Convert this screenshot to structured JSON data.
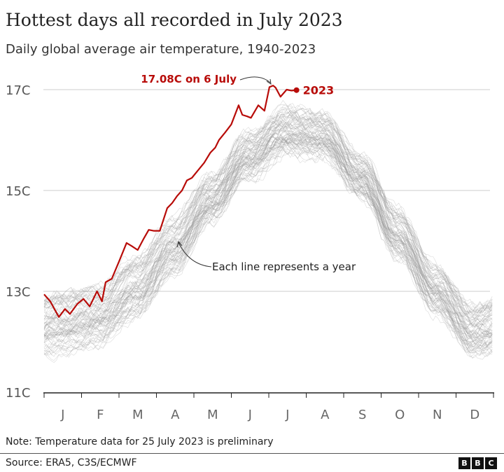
{
  "header": {
    "title": "Hottest days all recorded in July 2023",
    "subtitle": "Daily global average air temperature, 1940-2023"
  },
  "footer": {
    "note": "Note: Temperature data for 25 July 2023 is preliminary",
    "source": "Source: ERA5, C3S/ECMWF",
    "logo": "BBC"
  },
  "chart_data": {
    "type": "line",
    "title": "Hottest days all recorded in July 2023",
    "ylim": [
      11,
      17
    ],
    "y_ticks": [
      {
        "value": 11,
        "label": "11C"
      },
      {
        "value": 13,
        "label": "13C"
      },
      {
        "value": 15,
        "label": "15C"
      },
      {
        "value": 17,
        "label": "17C"
      }
    ],
    "x_ticks": [
      "J",
      "F",
      "M",
      "A",
      "M",
      "J",
      "J",
      "A",
      "S",
      "O",
      "N",
      "D"
    ],
    "grid": true,
    "colors": {
      "highlight": "#b80c09",
      "other_years": "#999999",
      "grid": "#dddddd"
    },
    "highlight_series": {
      "name": "2023",
      "points": [
        [
          1,
          12.94
        ],
        [
          6,
          12.8
        ],
        [
          13,
          12.49
        ],
        [
          18,
          12.65
        ],
        [
          22,
          12.55
        ],
        [
          28,
          12.75
        ],
        [
          33,
          12.85
        ],
        [
          38,
          12.7
        ],
        [
          44,
          13.0
        ],
        [
          48,
          12.8
        ],
        [
          51,
          13.18
        ],
        [
          56,
          13.25
        ],
        [
          62,
          13.6
        ],
        [
          68,
          13.96
        ],
        [
          72,
          13.9
        ],
        [
          77,
          13.82
        ],
        [
          82,
          14.05
        ],
        [
          86,
          14.22
        ],
        [
          90,
          14.2
        ],
        [
          95,
          14.2
        ],
        [
          101,
          14.65
        ],
        [
          105,
          14.75
        ],
        [
          109,
          14.89
        ],
        [
          113,
          15.0
        ],
        [
          117,
          15.2
        ],
        [
          121,
          15.25
        ],
        [
          126,
          15.4
        ],
        [
          131,
          15.55
        ],
        [
          136,
          15.75
        ],
        [
          140,
          15.85
        ],
        [
          143,
          16.0
        ],
        [
          148,
          16.15
        ],
        [
          153,
          16.31
        ],
        [
          159,
          16.69
        ],
        [
          162,
          16.5
        ],
        [
          166,
          16.47
        ],
        [
          169,
          16.44
        ],
        [
          175,
          16.69
        ],
        [
          180,
          16.58
        ],
        [
          184,
          17.05
        ],
        [
          187,
          17.08
        ],
        [
          189,
          17.04
        ],
        [
          193,
          16.86
        ],
        [
          198,
          17.0
        ],
        [
          202,
          16.98
        ],
        [
          206,
          16.99
        ]
      ]
    },
    "annotations": [
      {
        "text": "17.08C on  6 July",
        "day": 187,
        "value": 17.08
      },
      {
        "text": "Each line represents a year"
      }
    ],
    "other_years_1940_2022_envelope": {
      "months": [
        "Jan",
        "Feb",
        "Mar",
        "Apr",
        "May",
        "Jun",
        "Jul",
        "Aug",
        "Sep",
        "Oct",
        "Nov",
        "Dec"
      ],
      "low": [
        11.7,
        11.9,
        12.4,
        13.3,
        14.3,
        15.2,
        15.7,
        15.6,
        14.8,
        13.6,
        12.5,
        11.7
      ],
      "high": [
        13.1,
        13.2,
        13.8,
        14.5,
        15.4,
        16.2,
        16.7,
        16.6,
        15.8,
        14.7,
        13.6,
        12.8
      ]
    }
  }
}
